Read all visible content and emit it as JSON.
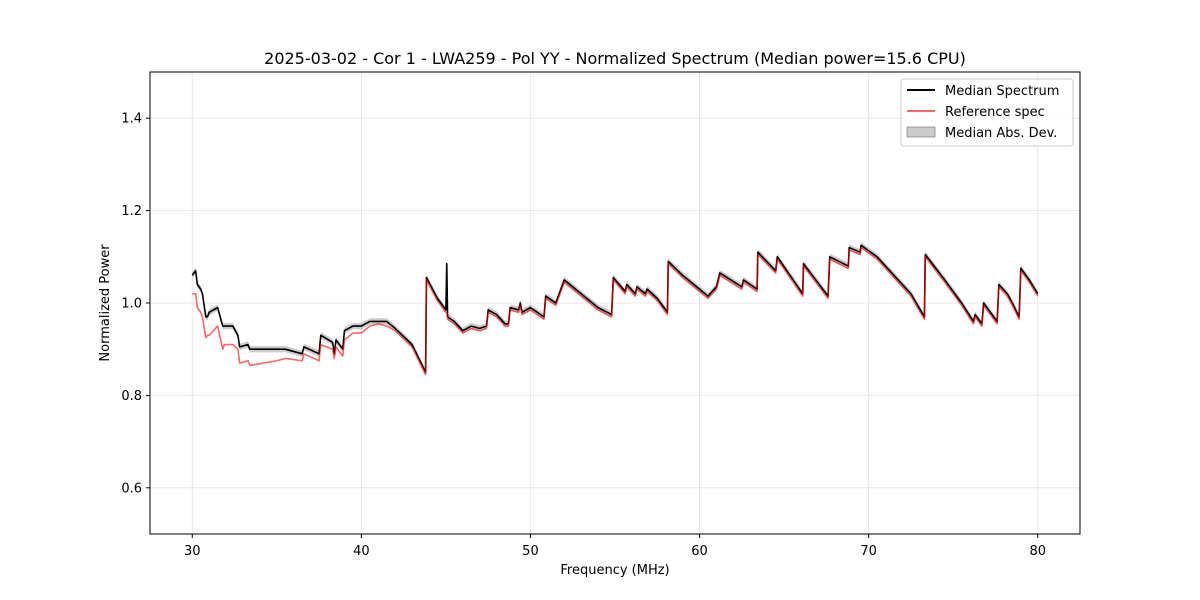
{
  "chart_data": {
    "type": "line",
    "title": "2025-03-02 - Cor 1 - LWA259 - Pol YY - Normalized Spectrum (Median power=15.6 CPU)",
    "xlabel": "Frequency (MHz)",
    "ylabel": "Normalized Power",
    "xlim": [
      27.5,
      82.5
    ],
    "ylim": [
      0.5,
      1.5
    ],
    "xticks": [
      30,
      40,
      50,
      60,
      70,
      80
    ],
    "xtick_labels": [
      "30",
      "40",
      "50",
      "60",
      "70",
      "80"
    ],
    "yticks": [
      0.6,
      0.8,
      1.0,
      1.2,
      1.4
    ],
    "ytick_labels": [
      "0.6",
      "0.8",
      "1.0",
      "1.2",
      "1.4"
    ],
    "grid": true,
    "legend_position": "top-right",
    "legend": [
      "Median Spectrum",
      "Reference spec",
      "Median Abs. Dev."
    ],
    "series": [
      {
        "name": "Median Spectrum",
        "color": "#000000",
        "x": [
          30.0,
          30.2,
          30.3,
          30.5,
          30.6,
          30.8,
          30.9,
          31.0,
          31.5,
          31.8,
          31.9,
          32.4,
          32.7,
          32.8,
          33.3,
          33.4,
          35.0,
          35.5,
          36.5,
          36.6,
          37.5,
          37.6,
          38.3,
          38.4,
          38.5,
          38.9,
          39.0,
          39.5,
          40.0,
          40.5,
          41.0,
          41.5,
          42.0,
          43.0,
          43.8,
          43.85,
          44.5,
          45.0,
          45.05,
          45.1,
          45.5,
          46.0,
          46.5,
          47.0,
          47.4,
          47.5,
          48.0,
          48.5,
          48.7,
          48.8,
          49.3,
          49.4,
          49.5,
          50.0,
          50.8,
          50.9,
          51.5,
          52.0,
          53.0,
          54.0,
          54.8,
          54.9,
          55.6,
          55.7,
          56.2,
          56.3,
          56.8,
          56.9,
          57.5,
          58.1,
          58.15,
          59.0,
          60.0,
          60.5,
          61.0,
          61.2,
          62.5,
          62.6,
          63.4,
          63.45,
          64.5,
          64.6,
          66.1,
          66.15,
          67.6,
          67.7,
          68.8,
          68.85,
          69.5,
          69.55,
          70.5,
          71.5,
          72.5,
          73.3,
          73.35,
          74.5,
          75.5,
          76.2,
          76.3,
          76.7,
          76.8,
          77.6,
          77.7,
          78.2,
          78.5,
          78.9,
          79.0,
          79.5,
          80.0
        ],
        "values": [
          1.06,
          1.07,
          1.04,
          1.03,
          1.02,
          0.97,
          0.97,
          0.98,
          0.99,
          0.95,
          0.95,
          0.95,
          0.93,
          0.905,
          0.91,
          0.9,
          0.9,
          0.9,
          0.89,
          0.905,
          0.89,
          0.93,
          0.915,
          0.89,
          0.92,
          0.9,
          0.94,
          0.95,
          0.95,
          0.96,
          0.96,
          0.96,
          0.945,
          0.91,
          0.85,
          1.055,
          1.01,
          0.985,
          1.085,
          0.97,
          0.96,
          0.94,
          0.95,
          0.945,
          0.95,
          0.985,
          0.975,
          0.955,
          0.955,
          0.99,
          0.985,
          1.0,
          0.98,
          0.99,
          0.97,
          1.015,
          1.0,
          1.05,
          1.02,
          0.99,
          0.975,
          1.055,
          1.025,
          1.04,
          1.02,
          1.035,
          1.02,
          1.03,
          1.01,
          0.98,
          1.09,
          1.06,
          1.03,
          1.015,
          1.035,
          1.065,
          1.035,
          1.05,
          1.03,
          1.11,
          1.07,
          1.1,
          1.02,
          1.085,
          1.015,
          1.1,
          1.08,
          1.12,
          1.11,
          1.125,
          1.1,
          1.06,
          1.02,
          0.97,
          1.105,
          1.05,
          1.0,
          0.96,
          0.975,
          0.955,
          1.0,
          0.96,
          1.04,
          1.02,
          1.0,
          0.97,
          1.075,
          1.05,
          1.02
        ]
      },
      {
        "name": "Reference spec",
        "color": "#ff0000",
        "x": [
          30.0,
          30.2,
          30.3,
          30.5,
          30.6,
          30.8,
          30.9,
          31.0,
          31.5,
          31.8,
          31.9,
          32.4,
          32.7,
          32.8,
          33.3,
          33.4,
          35.0,
          35.5,
          36.5,
          36.6,
          37.5,
          37.6,
          38.3,
          38.4,
          38.5,
          38.9,
          39.0,
          39.5,
          40.0,
          40.5,
          41.0,
          41.5,
          42.0,
          43.0,
          43.8,
          43.85,
          44.5,
          45.0,
          45.05,
          45.1,
          45.5,
          46.0,
          46.5,
          47.0,
          47.4,
          47.5,
          48.0,
          48.5,
          48.7,
          48.8,
          49.3,
          49.4,
          49.5,
          50.0,
          50.8,
          50.9,
          51.5,
          52.0,
          53.0,
          54.0,
          54.8,
          54.9,
          55.6,
          55.7,
          56.2,
          56.3,
          56.8,
          56.9,
          57.5,
          58.1,
          58.15,
          59.0,
          60.0,
          60.5,
          61.0,
          61.2,
          62.5,
          62.6,
          63.4,
          63.45,
          64.5,
          64.6,
          66.1,
          66.15,
          67.6,
          67.7,
          68.8,
          68.85,
          69.5,
          69.55,
          70.5,
          71.5,
          72.5,
          73.3,
          73.35,
          74.5,
          75.5,
          76.2,
          76.3,
          76.7,
          76.8,
          77.6,
          77.7,
          78.2,
          78.5,
          78.9,
          79.0,
          79.5,
          80.0
        ],
        "values": [
          1.02,
          1.02,
          0.99,
          0.98,
          0.97,
          0.925,
          0.93,
          0.93,
          0.95,
          0.9,
          0.91,
          0.91,
          0.9,
          0.87,
          0.875,
          0.865,
          0.875,
          0.88,
          0.875,
          0.89,
          0.875,
          0.91,
          0.9,
          0.88,
          0.905,
          0.885,
          0.92,
          0.935,
          0.935,
          0.95,
          0.955,
          0.95,
          0.94,
          0.905,
          0.845,
          1.05,
          1.005,
          0.98,
          0.98,
          0.965,
          0.955,
          0.935,
          0.945,
          0.94,
          0.945,
          0.98,
          0.97,
          0.95,
          0.95,
          0.985,
          0.98,
          0.995,
          0.975,
          0.985,
          0.965,
          1.01,
          0.995,
          1.045,
          1.015,
          0.985,
          0.97,
          1.05,
          1.02,
          1.035,
          1.015,
          1.03,
          1.015,
          1.025,
          1.005,
          0.975,
          1.085,
          1.055,
          1.025,
          1.01,
          1.03,
          1.06,
          1.03,
          1.045,
          1.025,
          1.105,
          1.065,
          1.095,
          1.015,
          1.08,
          1.01,
          1.095,
          1.075,
          1.115,
          1.105,
          1.12,
          1.095,
          1.055,
          1.015,
          0.965,
          1.1,
          1.045,
          0.995,
          0.955,
          0.97,
          0.95,
          0.995,
          0.955,
          1.035,
          1.015,
          0.995,
          0.965,
          1.07,
          1.045,
          1.015
        ]
      }
    ],
    "mad_band": {
      "name": "Median Abs. Dev.",
      "color": "#aaaaaa",
      "half_width": 0.007
    }
  }
}
